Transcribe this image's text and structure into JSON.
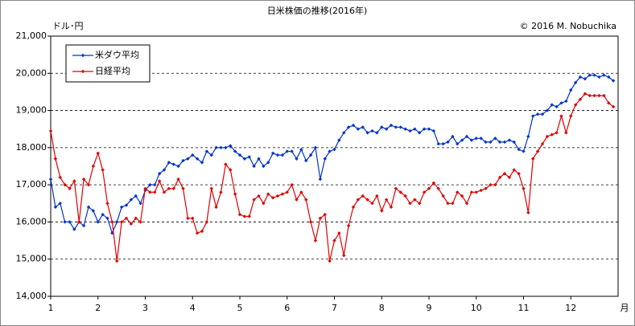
{
  "chart_data": {
    "type": "line",
    "title": "日米株価の推移(2016年)",
    "y_label": "ドル･円",
    "x_label": "月",
    "annotation": "© 2016 M. Nobuchika",
    "x": [
      1,
      1.1,
      1.2,
      1.3,
      1.4,
      1.5,
      1.6,
      1.7,
      1.8,
      1.9,
      2,
      2.1,
      2.2,
      2.3,
      2.4,
      2.5,
      2.6,
      2.7,
      2.8,
      2.9,
      3,
      3.1,
      3.2,
      3.3,
      3.4,
      3.5,
      3.6,
      3.7,
      3.8,
      3.9,
      4,
      4.1,
      4.2,
      4.3,
      4.4,
      4.5,
      4.6,
      4.7,
      4.8,
      4.9,
      5,
      5.1,
      5.2,
      5.3,
      5.4,
      5.5,
      5.6,
      5.7,
      5.8,
      5.9,
      6,
      6.1,
      6.2,
      6.3,
      6.4,
      6.5,
      6.6,
      6.7,
      6.8,
      6.9,
      7,
      7.1,
      7.2,
      7.3,
      7.4,
      7.5,
      7.6,
      7.7,
      7.8,
      7.9,
      8,
      8.1,
      8.2,
      8.3,
      8.4,
      8.5,
      8.6,
      8.7,
      8.8,
      8.9,
      9,
      9.1,
      9.2,
      9.3,
      9.4,
      9.5,
      9.6,
      9.7,
      9.8,
      9.9,
      10,
      10.1,
      10.2,
      10.3,
      10.4,
      10.5,
      10.6,
      10.7,
      10.8,
      10.9,
      11,
      11.1,
      11.2,
      11.3,
      11.4,
      11.5,
      11.6,
      11.7,
      11.8,
      11.9,
      12,
      12.1,
      12.2,
      12.3,
      12.4,
      12.5,
      12.6,
      12.7,
      12.8,
      12.9
    ],
    "series": [
      {
        "name": "米ダウ平均",
        "color": "#0033cc",
        "values": [
          17150,
          16400,
          16500,
          16000,
          16000,
          15800,
          16000,
          15900,
          16400,
          16300,
          16000,
          16200,
          16100,
          15700,
          16000,
          16400,
          16450,
          16600,
          16700,
          16500,
          16850,
          17000,
          17000,
          17300,
          17400,
          17600,
          17550,
          17500,
          17650,
          17700,
          17800,
          17700,
          17600,
          17900,
          17800,
          18000,
          18000,
          18000,
          18050,
          17900,
          17800,
          17700,
          17750,
          17500,
          17700,
          17500,
          17600,
          17850,
          17800,
          17800,
          17900,
          17900,
          17700,
          17950,
          17650,
          17800,
          18000,
          17150,
          17700,
          17900,
          17950,
          18200,
          18400,
          18550,
          18600,
          18500,
          18550,
          18400,
          18450,
          18400,
          18550,
          18500,
          18600,
          18550,
          18550,
          18500,
          18450,
          18500,
          18400,
          18500,
          18500,
          18450,
          18100,
          18100,
          18150,
          18300,
          18100,
          18200,
          18300,
          18200,
          18250,
          18250,
          18150,
          18150,
          18250,
          18150,
          18150,
          18200,
          18150,
          17950,
          17900,
          18300,
          18850,
          18900,
          18900,
          19000,
          19150,
          19100,
          19200,
          19250,
          19550,
          19750,
          19900,
          19850,
          19950,
          19950,
          19900,
          19950,
          19900,
          19800
        ]
      },
      {
        "name": "日経平均",
        "color": "#e00000",
        "values": [
          18450,
          17700,
          17200,
          17000,
          16900,
          17100,
          16000,
          17150,
          17000,
          17500,
          17850,
          17400,
          16500,
          16000,
          14950,
          16000,
          16100,
          15950,
          16100,
          16000,
          16900,
          16800,
          16800,
          17100,
          16800,
          16900,
          16900,
          17150,
          16900,
          16100,
          16100,
          15700,
          15750,
          16000,
          16900,
          16400,
          16800,
          17550,
          17400,
          16750,
          16200,
          16150,
          16150,
          16600,
          16700,
          16500,
          16750,
          16650,
          16700,
          16750,
          16800,
          17000,
          16600,
          16800,
          16600,
          16000,
          15500,
          16100,
          16200,
          14950,
          15500,
          15700,
          15100,
          15900,
          16400,
          16600,
          16700,
          16600,
          16500,
          16700,
          16300,
          16600,
          16400,
          16900,
          16800,
          16700,
          16500,
          16600,
          16500,
          16800,
          16900,
          17050,
          16900,
          16700,
          16500,
          16500,
          16800,
          16700,
          16500,
          16800,
          16800,
          16850,
          16900,
          17000,
          17000,
          17200,
          17300,
          17200,
          17400,
          17300,
          16900,
          16250,
          17700,
          17900,
          18100,
          18300,
          18350,
          18400,
          18850,
          18400,
          18850,
          19150,
          19300,
          19450,
          19400,
          19400,
          19400,
          19400,
          19200,
          19100
        ]
      }
    ],
    "xlim": [
      1,
      13
    ],
    "xticks": [
      1,
      2,
      3,
      4,
      5,
      6,
      7,
      8,
      9,
      10,
      11,
      12
    ],
    "ylim": [
      14000,
      21000
    ],
    "yticks": [
      {
        "value": 14000,
        "label": "14,000"
      },
      {
        "value": 15000,
        "label": "15,000"
      },
      {
        "value": 16000,
        "label": "16,000"
      },
      {
        "value": 17000,
        "label": "17,000"
      },
      {
        "value": 18000,
        "label": "18,000"
      },
      {
        "value": 19000,
        "label": "19,000"
      },
      {
        "value": 20000,
        "label": "20,000"
      },
      {
        "value": 21000,
        "label": "21,000"
      }
    ],
    "grid": true,
    "legend": "upper left"
  }
}
